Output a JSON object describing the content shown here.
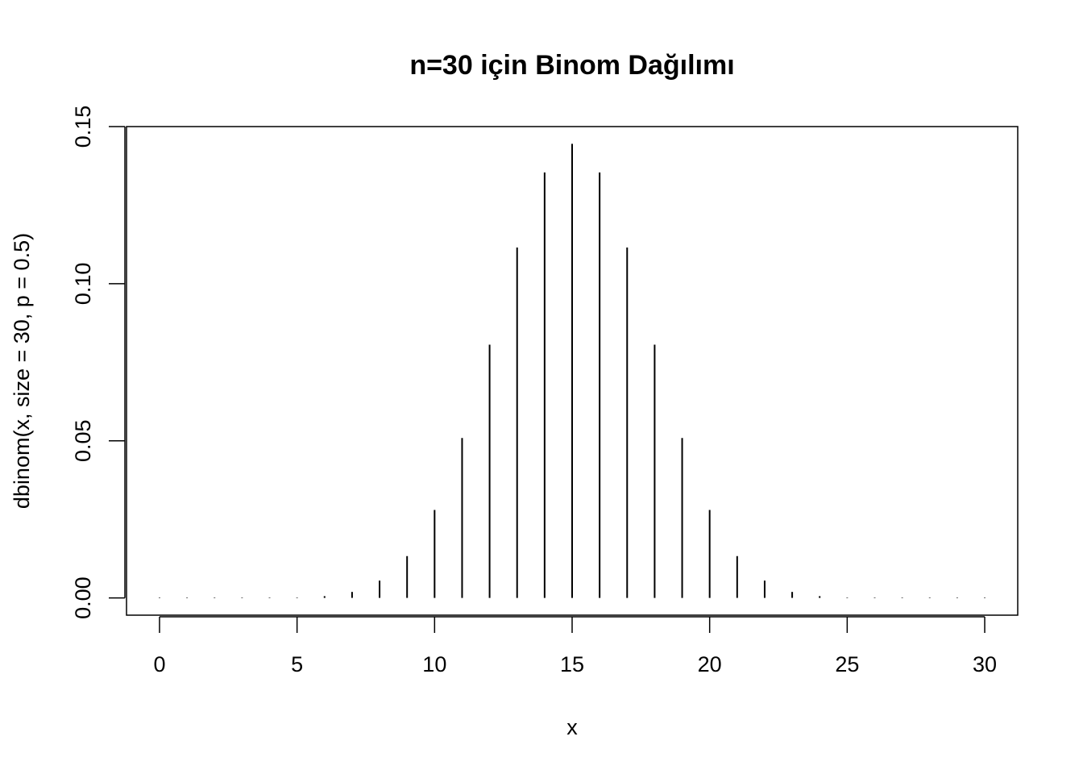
{
  "chart_data": {
    "type": "bar",
    "title": "n=30 için Binom Dağılımı",
    "xlabel": "x",
    "ylabel": "dbinom(x, size = 30, p = 0.5)",
    "x": [
      0,
      1,
      2,
      3,
      4,
      5,
      6,
      7,
      8,
      9,
      10,
      11,
      12,
      13,
      14,
      15,
      16,
      17,
      18,
      19,
      20,
      21,
      22,
      23,
      24,
      25,
      26,
      27,
      28,
      29,
      30
    ],
    "values": [
      9e-10,
      2.8e-08,
      4e-07,
      3.8e-06,
      2.5e-05,
      0.00013,
      0.00055,
      0.0019,
      0.0055,
      0.0133,
      0.028,
      0.0509,
      0.0806,
      0.1115,
      0.1354,
      0.1445,
      0.1354,
      0.1115,
      0.0806,
      0.0509,
      0.028,
      0.0133,
      0.0055,
      0.0019,
      0.00055,
      0.00013,
      2.5e-05,
      3.8e-06,
      4e-07,
      2.8e-08,
      9e-10
    ],
    "xlim": [
      -1.2,
      31.2
    ],
    "ylim": [
      -0.0055,
      0.15
    ],
    "xticks": [
      "0",
      "5",
      "10",
      "15",
      "20",
      "25",
      "30"
    ],
    "xtick_values": [
      0,
      5,
      10,
      15,
      20,
      25,
      30
    ],
    "yticks": [
      "0.00",
      "0.05",
      "0.10",
      "0.15"
    ],
    "ytick_values": [
      0,
      0.05,
      0.1,
      0.15
    ],
    "grid": false,
    "legend": "none",
    "bar_color": "#000000"
  }
}
